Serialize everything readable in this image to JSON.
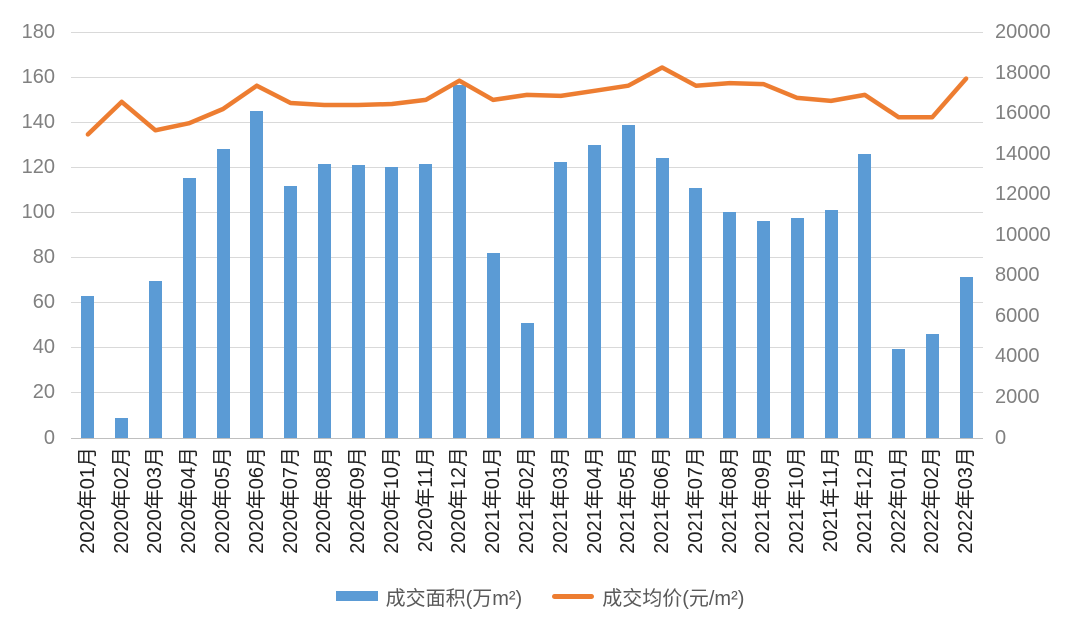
{
  "legend": [
    {
      "label": "成交面积(万m²)",
      "type": "bar",
      "color": "#5B9BD5"
    },
    {
      "label": "成交均价(元/m²)",
      "type": "line",
      "color": "#ED7D31"
    }
  ],
  "colors": {
    "bar": "#5B9BD5",
    "line": "#ED7D31",
    "grid": "#D9D9D9",
    "axis_line": "#BFBFBF",
    "tick_label": "#808080",
    "x_label": "#202020",
    "legend_text": "#595959",
    "background": "#FFFFFF"
  },
  "chart_data": {
    "type": "bar",
    "title": "",
    "xlabel": "",
    "ylabel_left": "成交面积(万m²)",
    "ylabel_right": "成交均价(元/m²)",
    "grid": true,
    "legend_position": "bottom",
    "categories": [
      "2020年01月",
      "2020年02月",
      "2020年03月",
      "2020年04月",
      "2020年05月",
      "2020年06月",
      "2020年07月",
      "2020年08月",
      "2020年09月",
      "2020年10月",
      "2020年11月",
      "2020年12月",
      "2021年01月",
      "2021年02月",
      "2021年03月",
      "2021年04月",
      "2021年05月",
      "2021年06月",
      "2021年07月",
      "2021年08月",
      "2021年09月",
      "2021年10月",
      "2021年11月",
      "2021年12月",
      "2022年01月",
      "2022年02月",
      "2022年03月"
    ],
    "series": [
      {
        "name": "成交面积(万m²)",
        "type": "bar",
        "axis": "left",
        "color": "#5B9BD5",
        "values": [
          63,
          9,
          69.5,
          115.5,
          128.5,
          145,
          112,
          121.5,
          121,
          120.5,
          121.5,
          156.5,
          82,
          51,
          122.5,
          130,
          139,
          124.5,
          111,
          100.5,
          96.5,
          97.5,
          101,
          126,
          39.5,
          46,
          71.5
        ]
      },
      {
        "name": "成交均价(元/m²)",
        "type": "line",
        "axis": "right",
        "color": "#ED7D31",
        "values": [
          14950,
          16550,
          15150,
          15500,
          16200,
          17350,
          16500,
          16400,
          16400,
          16450,
          16650,
          17600,
          16650,
          16900,
          16850,
          17100,
          17350,
          18250,
          17350,
          17480,
          17430,
          16750,
          16600,
          16900,
          15800,
          15800,
          17700
        ]
      }
    ],
    "left_axis": {
      "min": 0,
      "max": 180,
      "step": 20,
      "ticks": [
        0,
        20,
        40,
        60,
        80,
        100,
        120,
        140,
        160,
        180
      ]
    },
    "right_axis": {
      "min": 0,
      "max": 20000,
      "step": 2000,
      "ticks": [
        0,
        2000,
        4000,
        6000,
        8000,
        10000,
        12000,
        14000,
        16000,
        18000,
        20000
      ]
    }
  }
}
